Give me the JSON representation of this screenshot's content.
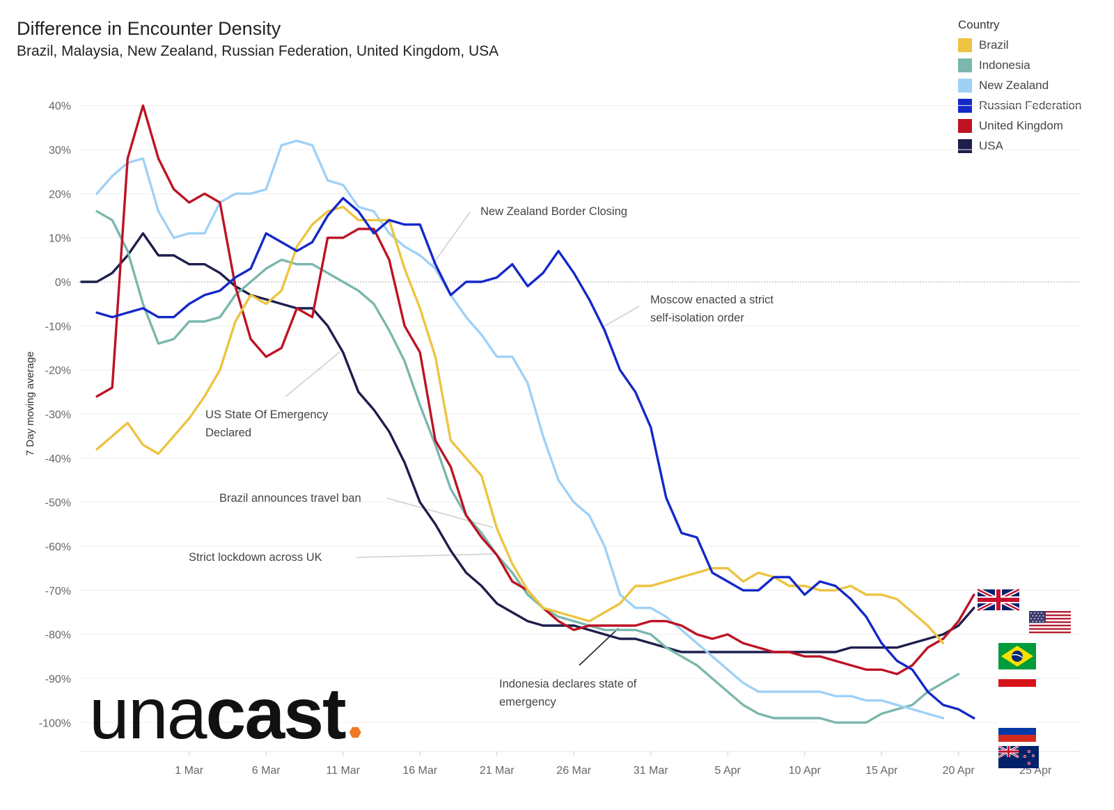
{
  "title": "Difference in Encounter Density",
  "subtitle": "Brazil, Malaysia, New Zealand, Russian Federation, United Kingdom, USA",
  "legend": {
    "title": "Country",
    "position": "top-right"
  },
  "logo": {
    "lite": "una",
    "bold": "cast"
  },
  "annotations": [
    {
      "text_lines": [
        "New Zealand Border Closing"
      ]
    },
    {
      "text_lines": [
        "Moscow enacted a strict",
        "self-isolation order"
      ]
    },
    {
      "text_lines": [
        "US State Of Emergency",
        "Declared"
      ]
    },
    {
      "text_lines": [
        "Brazil announces travel ban"
      ]
    },
    {
      "text_lines": [
        "Strict lockdown across UK"
      ]
    },
    {
      "text_lines": [
        "Indonesia declares state of",
        "emergency"
      ]
    }
  ],
  "flags": [
    {
      "country": "United Kingdom",
      "icon": "uk-flag-icon"
    },
    {
      "country": "USA",
      "icon": "usa-flag-icon"
    },
    {
      "country": "Brazil",
      "icon": "brazil-flag-icon"
    },
    {
      "country": "Indonesia",
      "icon": "indonesia-flag-icon"
    },
    {
      "country": "Russian Federation",
      "icon": "russia-flag-icon"
    },
    {
      "country": "New Zealand",
      "icon": "new-zealand-flag-icon"
    }
  ],
  "chart_data": {
    "type": "line",
    "title": "Difference in Encounter Density",
    "subtitle": "Brazil, Malaysia, New Zealand, Russian Federation, United Kingdom, USA",
    "xlabel": "",
    "ylabel": "7 Day moving average",
    "x_start": "2020-02-23",
    "x_ticks": [
      "1 Mar",
      "6 Mar",
      "11 Mar",
      "16 Mar",
      "21 Mar",
      "26 Mar",
      "31 Mar",
      "5 Apr",
      "10 Apr",
      "15 Apr",
      "20 Apr",
      "25 Apr"
    ],
    "y_ticks": [
      "40%",
      "30%",
      "20%",
      "10%",
      "0%",
      "-10%",
      "-20%",
      "-30%",
      "-40%",
      "-50%",
      "-60%",
      "-70%",
      "-80%",
      "-90%",
      "-100%"
    ],
    "ylim": [
      -106,
      46
    ],
    "grid": true,
    "zero_line": "dotted",
    "series": [
      {
        "name": "Brazil",
        "color": "#ecc441",
        "start": "2020-02-24",
        "values": [
          -38,
          -35,
          -32,
          -37,
          -39,
          -35,
          -31,
          -26,
          -20,
          -9,
          -3,
          -5,
          -2,
          8,
          13,
          16,
          17,
          14,
          14,
          14,
          3,
          -6,
          -17,
          -36,
          -40,
          -44,
          -56,
          -64,
          -70,
          -74,
          -75,
          -76,
          -77,
          -75,
          -73,
          -69,
          -69,
          -68,
          -67,
          -66,
          -65,
          -65,
          -68,
          -66,
          -67,
          -69,
          -69,
          -70,
          -70,
          -69,
          -71,
          -71,
          -72,
          -75,
          -78,
          -82
        ]
      },
      {
        "name": "Indonesia",
        "color": "#7ab7ac",
        "start": "2020-02-24",
        "values": [
          16,
          14,
          7,
          -5,
          -14,
          -13,
          -9,
          -9,
          -8,
          -3,
          0,
          3,
          5,
          4,
          4,
          2,
          0,
          -2,
          -5,
          -11,
          -18,
          -28,
          -37,
          -47,
          -53,
          -57,
          -62,
          -66,
          -71,
          -74,
          -76,
          -77,
          -78,
          -79,
          -79,
          -79,
          -80,
          -83,
          -85,
          -87,
          -90,
          -93,
          -96,
          -98,
          -99,
          -99,
          -99,
          -99,
          -100,
          -100,
          -100,
          -98,
          -97,
          -96,
          -93,
          -91,
          -89
        ]
      },
      {
        "name": "New Zealand",
        "color": "#9fd1f7",
        "start": "2020-02-24",
        "values": [
          20,
          24,
          27,
          28,
          16,
          10,
          11,
          11,
          18,
          20,
          20,
          21,
          31,
          32,
          31,
          23,
          22,
          17,
          16,
          11,
          8,
          6,
          3,
          -3,
          -8,
          -12,
          -17,
          -17,
          -23,
          -35,
          -45,
          -50,
          -53,
          -60,
          -71,
          -74,
          -74,
          -76,
          -79,
          -82,
          -85,
          -88,
          -91,
          -93,
          -93,
          -93,
          -93,
          -93,
          -94,
          -94,
          -95,
          -95,
          -96,
          -97,
          -98,
          -99
        ]
      },
      {
        "name": "Russian Federation",
        "color": "#1428c8",
        "start": "2020-02-24",
        "values": [
          -7,
          -8,
          -7,
          -6,
          -8,
          -8,
          -5,
          -3,
          -2,
          1,
          3,
          11,
          9,
          7,
          9,
          15,
          19,
          16,
          11,
          14,
          13,
          13,
          4,
          -3,
          0,
          0,
          1,
          4,
          -1,
          2,
          7,
          2,
          -4,
          -11,
          -20,
          -25,
          -33,
          -49,
          -57,
          -58,
          -66,
          -68,
          -70,
          -70,
          -67,
          -67,
          -71,
          -68,
          -69,
          -72,
          -76,
          -82,
          -86,
          -88,
          -93,
          -96,
          -97,
          -99
        ]
      },
      {
        "name": "United Kingdom",
        "color": "#bd1324",
        "start": "2020-02-24",
        "values": [
          -26,
          -24,
          28,
          40,
          28,
          21,
          18,
          20,
          18,
          -1,
          -13,
          -17,
          -15,
          -6,
          -8,
          10,
          10,
          12,
          12,
          5,
          -10,
          -16,
          -36,
          -42,
          -53,
          -58,
          -62,
          -68,
          -70,
          -74,
          -77,
          -79,
          -78,
          -78,
          -78,
          -78,
          -77,
          -77,
          -78,
          -80,
          -81,
          -80,
          -82,
          -83,
          -84,
          -84,
          -85,
          -85,
          -86,
          -87,
          -88,
          -88,
          -89,
          -87,
          -83,
          -81,
          -77,
          -71
        ]
      },
      {
        "name": "USA",
        "color": "#1d1e4c",
        "start": "2020-02-23",
        "values": [
          0,
          0,
          2,
          6,
          11,
          6,
          6,
          4,
          4,
          2,
          -1,
          -3,
          -4,
          -5,
          -6,
          -6,
          -10,
          -16,
          -25,
          -29,
          -34,
          -41,
          -50,
          -55,
          -61,
          -66,
          -69,
          -73,
          -75,
          -77,
          -78,
          -78,
          -78,
          -79,
          -80,
          -81,
          -81,
          -82,
          -83,
          -84,
          -84,
          -84,
          -84,
          -84,
          -84,
          -84,
          -84,
          -84,
          -84,
          -84,
          -83,
          -83,
          -83,
          -83,
          -82,
          -81,
          -80,
          -78,
          -74
        ]
      }
    ]
  }
}
